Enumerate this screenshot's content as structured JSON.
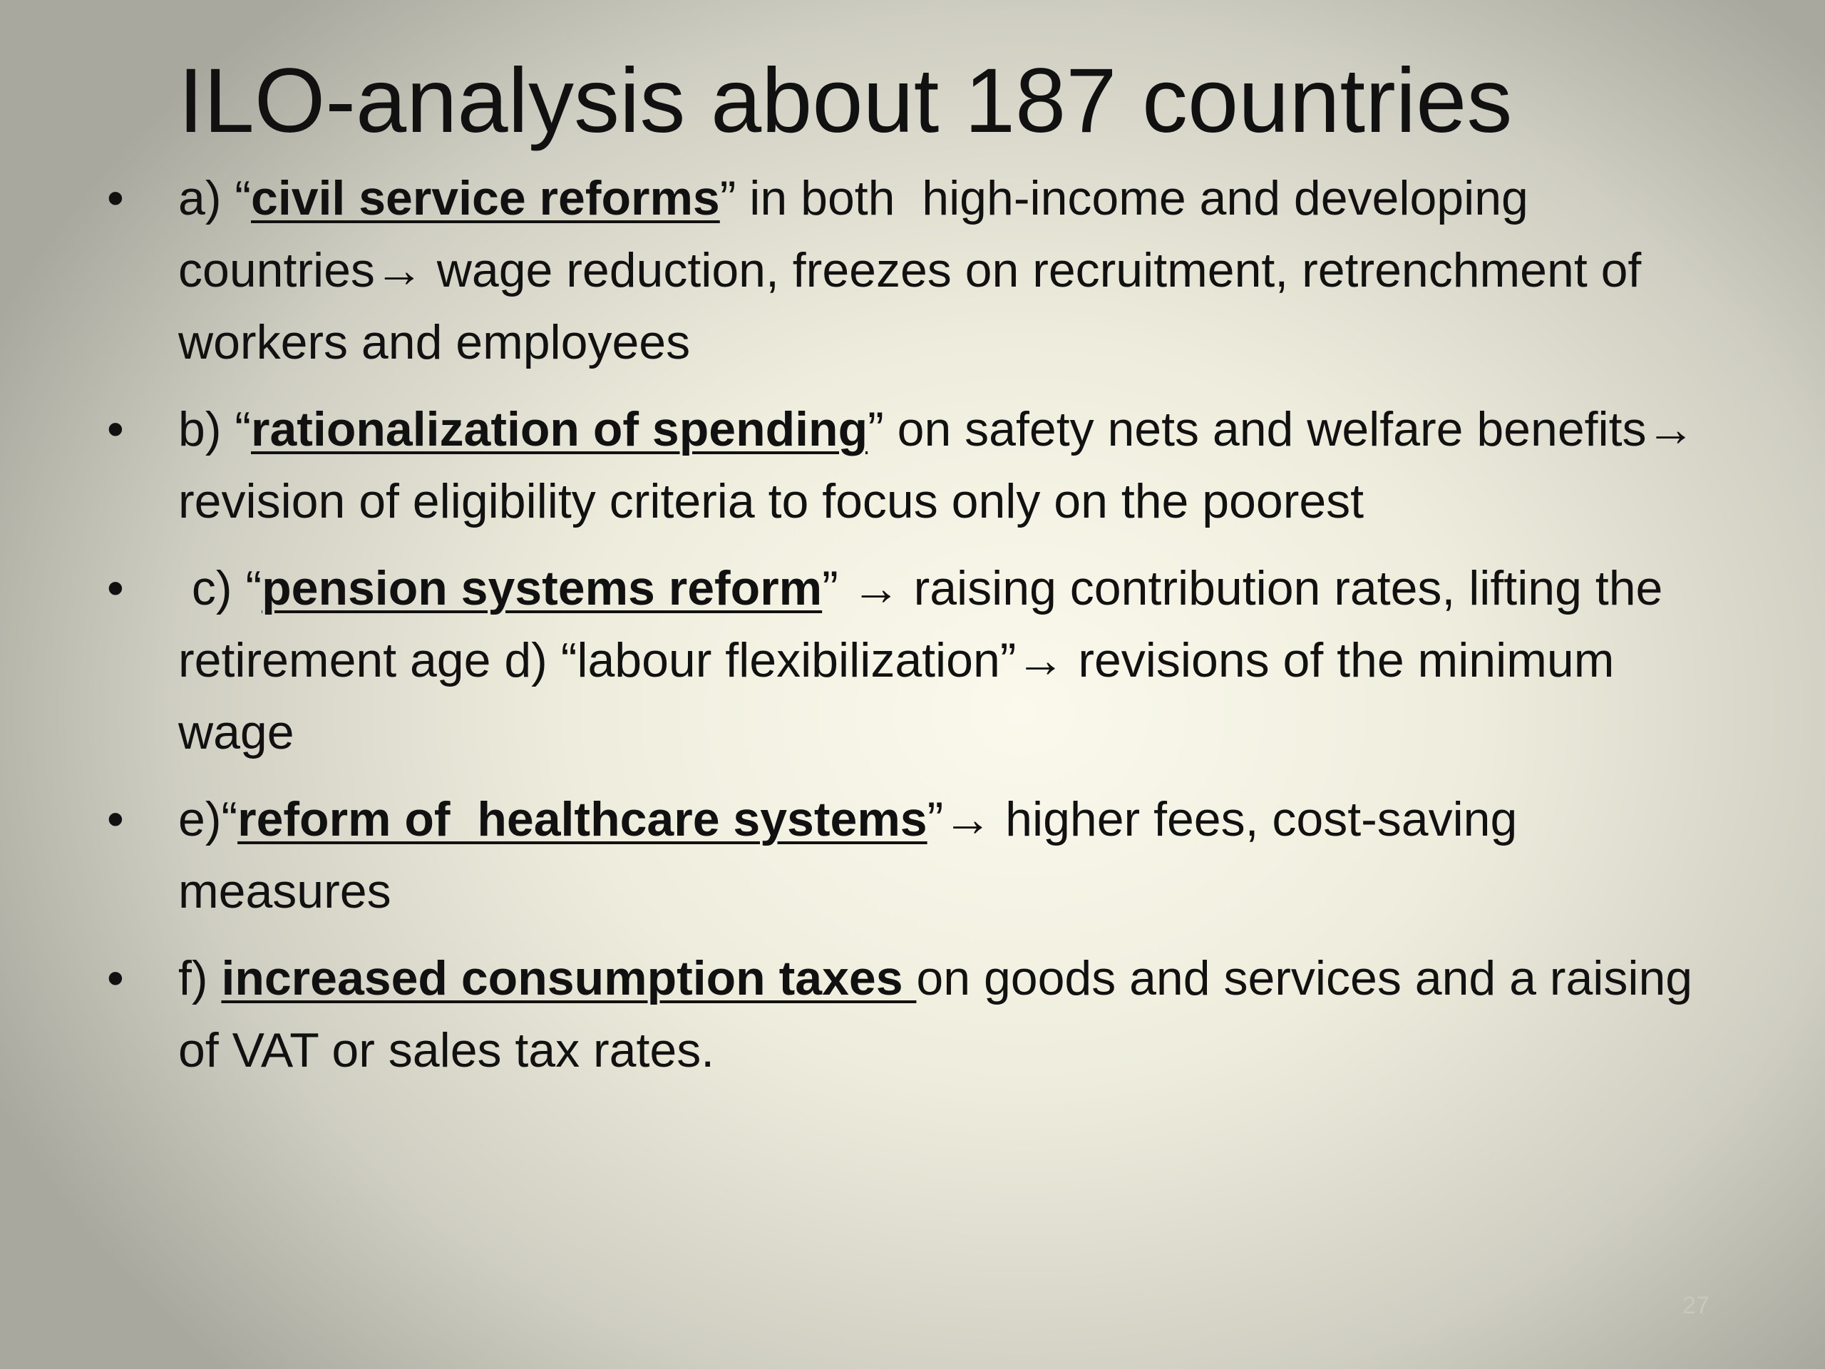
{
  "slide": {
    "title": "ILO-analysis about 187 countries",
    "bullets": [
      {
        "runs": [
          {
            "text": "a) “"
          },
          {
            "text": "civil service reforms",
            "strong": true
          },
          {
            "text": "” in both  high-income and developing countries→ wage reduction, freezes on recruitment, retrenchment of workers and employees"
          }
        ]
      },
      {
        "runs": [
          {
            "text": "b) “"
          },
          {
            "text": "rationalization of spending",
            "strong": true
          },
          {
            "text": "” on safety nets and welfare benefits→ revision of eligibility criteria to focus only on the poorest"
          }
        ]
      },
      {
        "runs": [
          {
            "text": " c) “"
          },
          {
            "text": "pension systems reform",
            "strong": true
          },
          {
            "text": "” → raising contribution rates, lifting the retirement age d) “labour flexibilization”→ revisions of the minimum wage"
          }
        ]
      },
      {
        "runs": [
          {
            "text": "e)“"
          },
          {
            "text": "reform of  healthcare systems",
            "strong": true
          },
          {
            "text": "”→ higher fees, cost-saving measures"
          }
        ]
      },
      {
        "runs": [
          {
            "text": "f) "
          },
          {
            "text": "increased consumption taxes ",
            "strong": true
          },
          {
            "text": "on goods and services and a raising of VAT or sales tax rates."
          }
        ]
      }
    ],
    "page_number": "27"
  }
}
